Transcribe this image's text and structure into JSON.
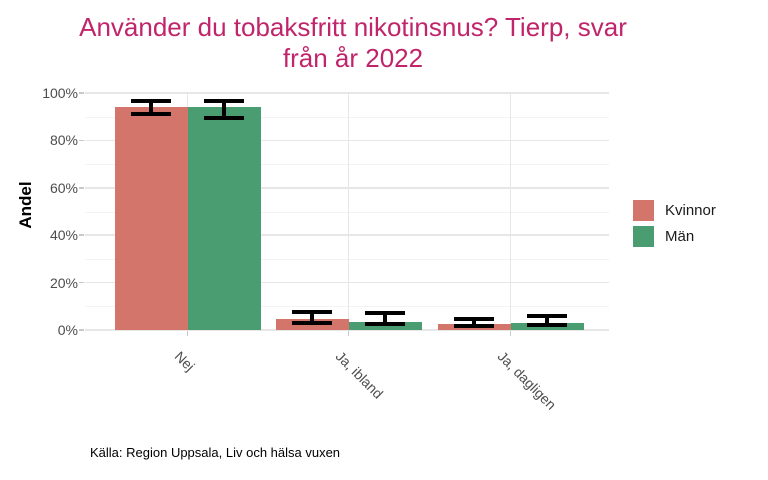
{
  "title_lines": [
    "Använder du tobaksfritt nikotinsnus? Tierp, svar",
    "från år 2022"
  ],
  "source_note": "Källa: Region Uppsala, Liv och hälsa vuxen",
  "colors": {
    "title": "#C0256B",
    "kvinnor": "#D4756B",
    "man": "#4A9D70",
    "error_bar": "#000000",
    "grid_major": "#E7E7E7",
    "grid_minor": "#F3F3F3",
    "axis_text": "#4D4D4D",
    "tick_mark": "#C9C9C9"
  },
  "chart_data": {
    "type": "bar",
    "bar_layout": "grouped",
    "title": "Använder du tobaksfritt nikotinsnus? Tierp, svar från år 2022",
    "categories": [
      "Nej",
      "Ja, ibland",
      "Ja, dagligen"
    ],
    "series": [
      {
        "name": "Kvinnor",
        "color": "#D4756B",
        "values": [
          94,
          4.5,
          2.5
        ],
        "error_low": [
          91,
          3,
          1.5
        ],
        "error_high": [
          96.5,
          7.5,
          4.5
        ]
      },
      {
        "name": "Män",
        "color": "#4A9D70",
        "values": [
          94,
          3.5,
          3
        ],
        "error_low": [
          89.5,
          2.5,
          2
        ],
        "error_high": [
          96.5,
          7,
          6
        ]
      }
    ],
    "xlabel": "",
    "ylabel": "Andel",
    "ylim": [
      0,
      100
    ],
    "yticks": [
      "0%",
      "20%",
      "40%",
      "60%",
      "80%",
      "100%"
    ],
    "ytick_values": [
      0,
      20,
      40,
      60,
      80,
      100
    ],
    "grid": true,
    "error_bars": true,
    "legend_position": "right"
  }
}
